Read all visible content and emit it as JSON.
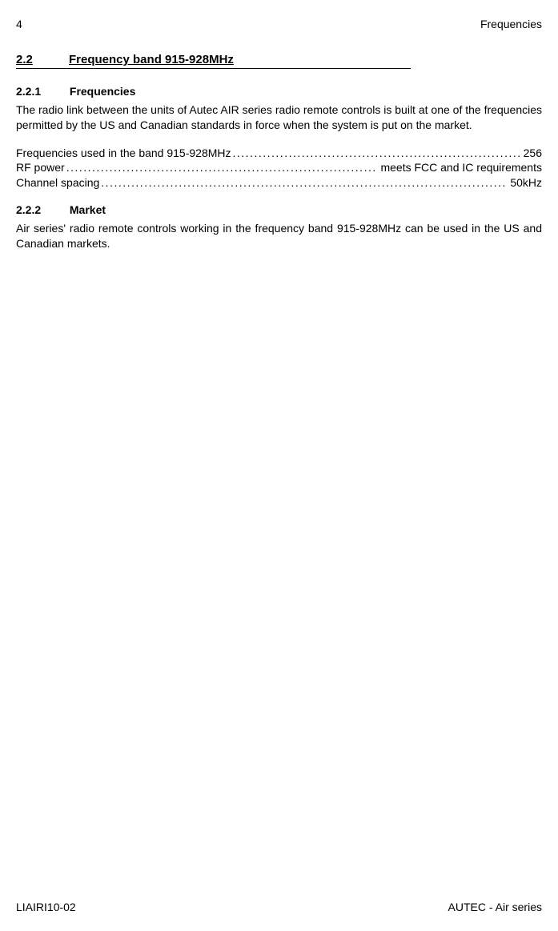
{
  "header": {
    "page_number": "4",
    "chapter_title": "Frequencies"
  },
  "section": {
    "number": "2.2",
    "title": "Frequency band 915-928MHz"
  },
  "sub1": {
    "number": "2.2.1",
    "title": "Frequencies",
    "paragraph": "The radio link between the units of Autec AIR series radio remote controls is built at one of the frequencies permitted by the US and Canadian standards in force when the system is put on the market."
  },
  "specs": {
    "line1_label": "Frequencies used in the band 915-928MHz ",
    "line1_value": " 256",
    "line2_label": "RF power ",
    "line2_value": " meets FCC and IC requirements",
    "line3_label": "Channel spacing ",
    "line3_value": " 50kHz"
  },
  "sub2": {
    "number": "2.2.2",
    "title": "Market",
    "paragraph": "Air series' radio remote controls working in the frequency band 915-928MHz can be used in the US and Canadian markets."
  },
  "footer": {
    "doc_code": "LIAIRI10-02",
    "product": "AUTEC - Air series"
  },
  "dots": "................................................................................................................................................................................................"
}
